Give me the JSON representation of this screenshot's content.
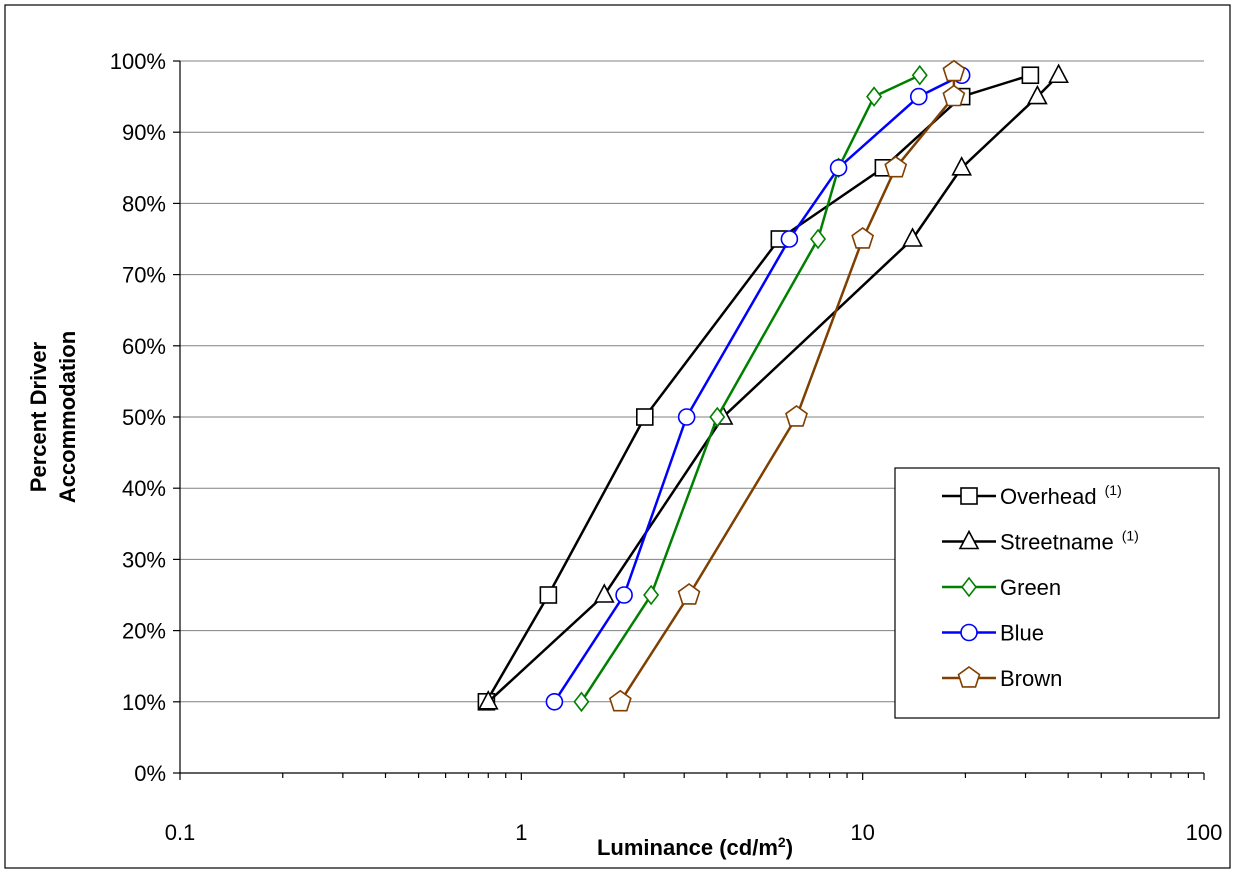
{
  "chart_data": {
    "type": "line",
    "xscale": "log",
    "xlim": [
      0.1,
      100
    ],
    "ylim": [
      0,
      1.0
    ],
    "xlabel_main": "Luminance (cd/m",
    "xlabel_sup": "2",
    "xlabel_end": ")",
    "ylabel_line1": "Percent Driver",
    "ylabel_line2": "Accommodation",
    "x_tick_labels": [
      {
        "value": 0.1,
        "label": "0.1"
      },
      {
        "value": 1,
        "label": "1"
      },
      {
        "value": 10,
        "label": "10"
      },
      {
        "value": 100,
        "label": "100"
      }
    ],
    "y_tick_labels": [
      {
        "value": 0.0,
        "label": "0%"
      },
      {
        "value": 0.1,
        "label": "10%"
      },
      {
        "value": 0.2,
        "label": "20%"
      },
      {
        "value": 0.3,
        "label": "30%"
      },
      {
        "value": 0.4,
        "label": "40%"
      },
      {
        "value": 0.5,
        "label": "50%"
      },
      {
        "value": 0.6,
        "label": "60%"
      },
      {
        "value": 0.7,
        "label": "70%"
      },
      {
        "value": 0.8,
        "label": "80%"
      },
      {
        "value": 0.9,
        "label": "90%"
      },
      {
        "value": 1.0,
        "label": "100%"
      }
    ],
    "grid": "horizontal major",
    "legend_position": "bottom-right",
    "series": [
      {
        "name": "Overhead",
        "note": "(1)",
        "color": "#000000",
        "marker": "square",
        "points": [
          [
            0.79,
            0.1
          ],
          [
            1.2,
            0.25
          ],
          [
            2.3,
            0.5
          ],
          [
            5.7,
            0.75
          ],
          [
            11.5,
            0.85
          ],
          [
            19.5,
            0.95
          ],
          [
            31.0,
            0.98
          ]
        ]
      },
      {
        "name": "Streetname",
        "note": "(1)",
        "color": "#000000",
        "marker": "triangle",
        "points": [
          [
            0.8,
            0.1
          ],
          [
            1.75,
            0.25
          ],
          [
            3.9,
            0.5
          ],
          [
            14.0,
            0.75
          ],
          [
            19.5,
            0.85
          ],
          [
            32.5,
            0.95
          ],
          [
            37.5,
            0.98
          ]
        ]
      },
      {
        "name": "Green",
        "note": "",
        "color": "#008000",
        "marker": "diamond",
        "points": [
          [
            1.5,
            0.1
          ],
          [
            2.4,
            0.25
          ],
          [
            3.75,
            0.5
          ],
          [
            7.4,
            0.75
          ],
          [
            8.5,
            0.85
          ],
          [
            10.8,
            0.95
          ],
          [
            14.7,
            0.98
          ]
        ]
      },
      {
        "name": "Blue",
        "note": "",
        "color": "#0000ff",
        "marker": "circle",
        "points": [
          [
            1.25,
            0.1
          ],
          [
            2.0,
            0.25
          ],
          [
            3.05,
            0.5
          ],
          [
            6.1,
            0.75
          ],
          [
            8.5,
            0.85
          ],
          [
            14.6,
            0.95
          ],
          [
            19.5,
            0.98
          ]
        ]
      },
      {
        "name": "Brown",
        "note": "",
        "color": "#7f3f00",
        "marker": "pentagon",
        "points": [
          [
            1.95,
            0.1
          ],
          [
            3.1,
            0.25
          ],
          [
            6.4,
            0.5
          ],
          [
            10.0,
            0.75
          ],
          [
            12.5,
            0.85
          ],
          [
            18.5,
            0.95
          ],
          [
            18.5,
            0.985
          ]
        ]
      }
    ]
  }
}
